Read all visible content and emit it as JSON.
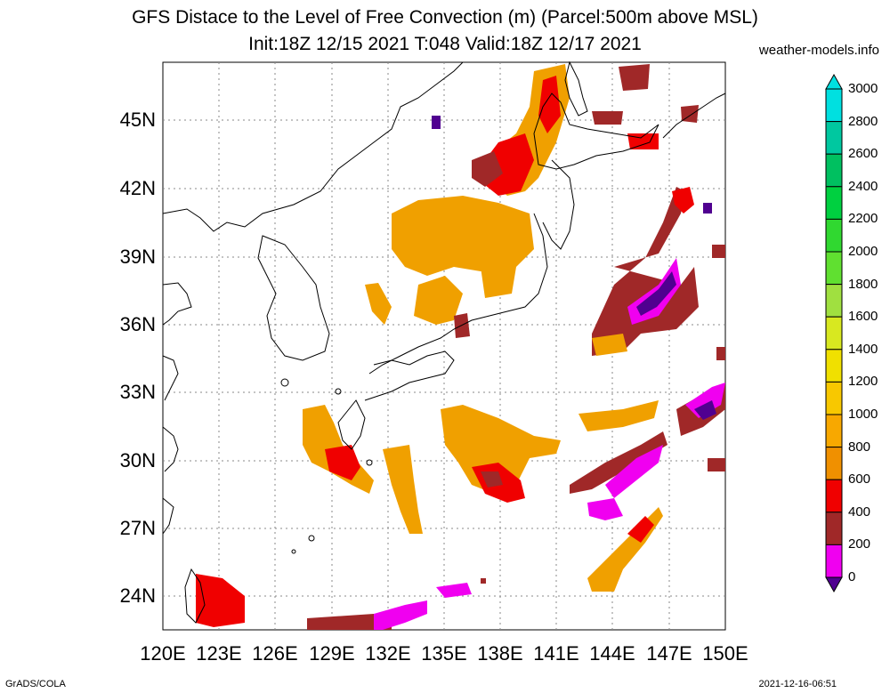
{
  "title_line1": "GFS Distace to the Level of Free Convection (m) (Parcel:500m above MSL)",
  "title_line2": "Init:18Z 12/15 2021 T:048 Valid:18Z 12/17 2021",
  "credit": "weather-models.info",
  "footer_left": "GrADS/COLA",
  "footer_right": "2021-12-16-06:51",
  "lat_labels": [
    "45N",
    "42N",
    "39N",
    "36N",
    "33N",
    "30N",
    "27N",
    "24N"
  ],
  "lon_labels": [
    "120E",
    "123E",
    "126E",
    "129E",
    "132E",
    "135E",
    "138E",
    "141E",
    "144E",
    "147E",
    "150E"
  ],
  "legend": {
    "labels": [
      "3000",
      "2800",
      "2600",
      "2400",
      "2200",
      "2000",
      "1800",
      "1600",
      "1400",
      "1200",
      "1000",
      "800",
      "600",
      "400",
      "200",
      "0"
    ],
    "colors": [
      "#00e0e0",
      "#00c8a0",
      "#00c060",
      "#00d040",
      "#30d830",
      "#60e030",
      "#a0e040",
      "#d8e820",
      "#f0e000",
      "#f8c800",
      "#f8a800",
      "#f09000",
      "#f00000",
      "#a02828",
      "#f000f0",
      "#500090"
    ]
  },
  "colors": {
    "orange": "#f0a000",
    "dark_red": "#a02828",
    "red": "#f00000",
    "magenta": "#f000f0",
    "purple": "#500090"
  }
}
